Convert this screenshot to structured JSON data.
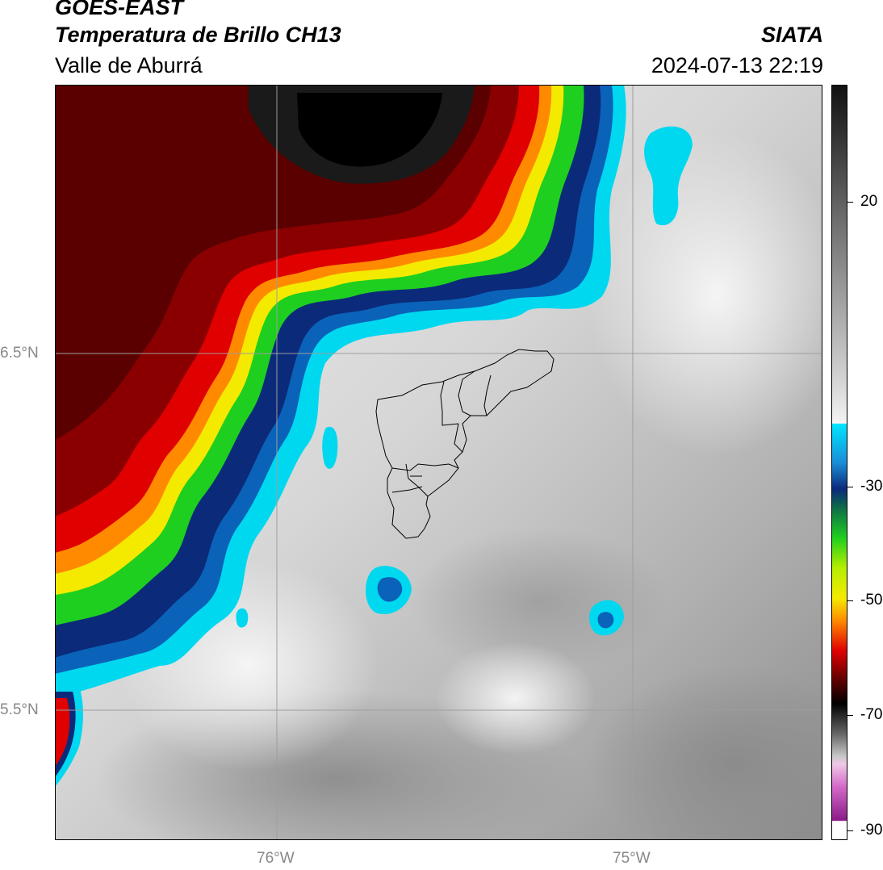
{
  "header": {
    "satellite": "GOES-EAST",
    "product": "Temperatura de Brillo CH13",
    "region": "Valle de Aburrá",
    "organization": "SIATA",
    "timestamp": "2024-07-13 22:19"
  },
  "map": {
    "lat_labels": [
      "6.5°N",
      "5.5°N"
    ],
    "lon_labels": [
      "76°W",
      "75°W"
    ],
    "boundary_color": "#000000",
    "gridline_color": "#9e9e9e"
  },
  "colorbar": {
    "ticks": [
      "20",
      "-30",
      "-50",
      "-70",
      "-90"
    ],
    "colors": {
      "warm_top": "#111111",
      "mid_grey": "#8a8a8a",
      "near_white": "#f0f0f0",
      "cyan": "#00d8f0",
      "blue": "#0a63b8",
      "navy": "#0b2a7a",
      "green": "#1fcf1f",
      "yellow": "#f4ea00",
      "orange": "#ff8a00",
      "red": "#e00000",
      "dark_red": "#5a0000",
      "black": "#000000",
      "magenta": "#d46ac8",
      "purple": "#8a1a8a"
    }
  }
}
